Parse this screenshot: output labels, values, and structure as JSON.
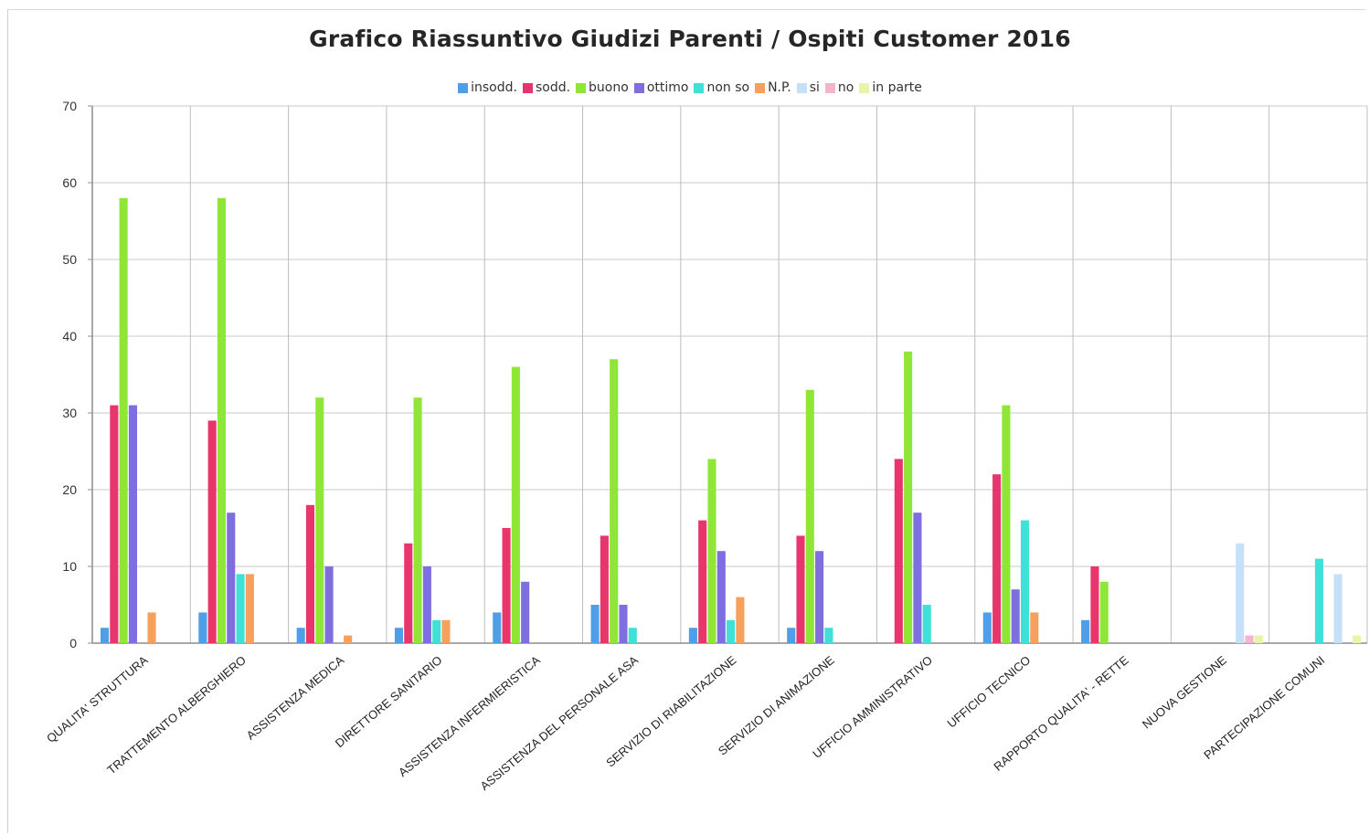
{
  "chart_data": {
    "type": "bar",
    "title": "Grafico Riassuntivo Giudizi Parenti / Ospiti Customer 2016",
    "xlabel": "",
    "ylabel": "",
    "ylim": [
      0,
      70
    ],
    "yticks": [
      0,
      10,
      20,
      30,
      40,
      50,
      60,
      70
    ],
    "grid": true,
    "legend_position": "top",
    "categories": [
      "QUALITA' STRUTTURA",
      "TRATTEMENTO ALBERGHIERO",
      "ASSISTENZA MEDICA",
      "DIRETTORE SANITARIO",
      "ASSISTENZA INFERMIERISTICA",
      "ASSISTENZA DEL PERSONALE ASA",
      "SERVIZIO DI RIABILITAZIONE",
      "SERVIZIO DI ANIMAZIONE",
      "UFFICIO AMMINISTRATIVO",
      "UFFICIO TECNICO",
      "RAPPORTO QUALITA' - RETTE",
      "NUOVA GESTIONE",
      "PARTECIPAZIONE COMUNI"
    ],
    "series": [
      {
        "name": "insodd.",
        "color": "#4f9fe8",
        "values": [
          2,
          4,
          2,
          2,
          4,
          5,
          2,
          2,
          0,
          4,
          3,
          0,
          0
        ]
      },
      {
        "name": "sodd.",
        "color": "#e8356b",
        "values": [
          31,
          29,
          18,
          13,
          15,
          14,
          16,
          14,
          24,
          22,
          10,
          0,
          0
        ]
      },
      {
        "name": "buono",
        "color": "#8fe637",
        "values": [
          58,
          58,
          32,
          32,
          36,
          37,
          24,
          33,
          38,
          31,
          8,
          0,
          0
        ]
      },
      {
        "name": "ottimo",
        "color": "#7e6ee0",
        "values": [
          31,
          17,
          10,
          10,
          8,
          5,
          12,
          12,
          17,
          7,
          0,
          0,
          0
        ]
      },
      {
        "name": "non so",
        "color": "#3ee0d8",
        "values": [
          0,
          9,
          0,
          3,
          0,
          2,
          3,
          2,
          5,
          16,
          0,
          0,
          11
        ]
      },
      {
        "name": "N.P.",
        "color": "#f5a05c",
        "values": [
          4,
          9,
          1,
          3,
          0,
          0,
          6,
          0,
          0,
          4,
          0,
          0,
          0
        ]
      },
      {
        "name": "si",
        "color": "#c6e0f8",
        "values": [
          0,
          0,
          0,
          0,
          0,
          0,
          0,
          0,
          0,
          0,
          0,
          13,
          9
        ]
      },
      {
        "name": "no",
        "color": "#f7b3cc",
        "values": [
          0,
          0,
          0,
          0,
          0,
          0,
          0,
          0,
          0,
          0,
          0,
          1,
          0
        ]
      },
      {
        "name": "in parte",
        "color": "#e6f5a8",
        "values": [
          0,
          0,
          0,
          0,
          0,
          0,
          0,
          0,
          0,
          0,
          0,
          1,
          1
        ]
      }
    ]
  }
}
